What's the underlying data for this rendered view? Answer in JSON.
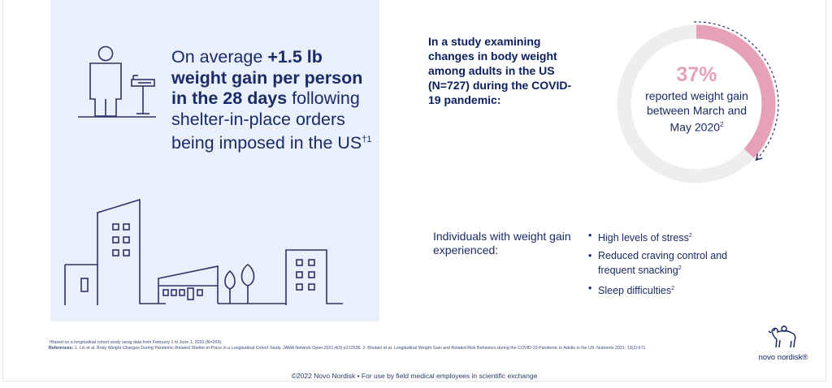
{
  "headline": {
    "prefix": "On average ",
    "bold": "+1.5 lb weight gain per person in the 28 days",
    "rest": " following shelter-in-place orders being imposed in the US",
    "sup": "†1"
  },
  "study_text": "In a study examining changes in body weight among adults in the US (N=727) during the COVID-19 pandemic:",
  "stat": {
    "percent_label": "37%",
    "percent_value": 37,
    "description": "reported weight gain between March and May 2020",
    "sup": "2"
  },
  "individuals_label": "Individuals with weight gain experienced:",
  "bullets": [
    {
      "text": "High levels of stress",
      "sup": "2"
    },
    {
      "text": "Reduced craving control and frequent snacking",
      "sup": "2"
    },
    {
      "text": "Sleep difficulties",
      "sup": "2"
    }
  ],
  "bullet_glyph": "•",
  "footnotes": {
    "dagger": "†Based on a longitudinal cohort study using data from February 1 to June 1, 2020 (N=269).",
    "ref_label": "References:",
    "ref_text": " 1. Lin et al. Body Weight Changes During Pandemic-Related Shelter-in-Place in a Longitudinal Cohort Study. JAMA Network Open 2021;4(3):e212536. 2. Bhutani et al. Longitudinal Weight Gain and Related Risk Behaviors during the COVID-19 Pandemic in Adults in the US. Nutrients 2021; 13(2):671."
  },
  "logo_text": "novo nordisk®",
  "copyright": "©2022 Novo Nordisk • For use by field medical employees in scientific exchange",
  "colors": {
    "panel": "#e9effb",
    "navy": "#0b1f5c",
    "pink": "#e6a1b6",
    "ring": "#eeeef0",
    "line_art": "#2a3566"
  },
  "icons": [
    "person-icon",
    "scale-icon",
    "city-skyline-icon",
    "apis-bull-logo-icon"
  ]
}
